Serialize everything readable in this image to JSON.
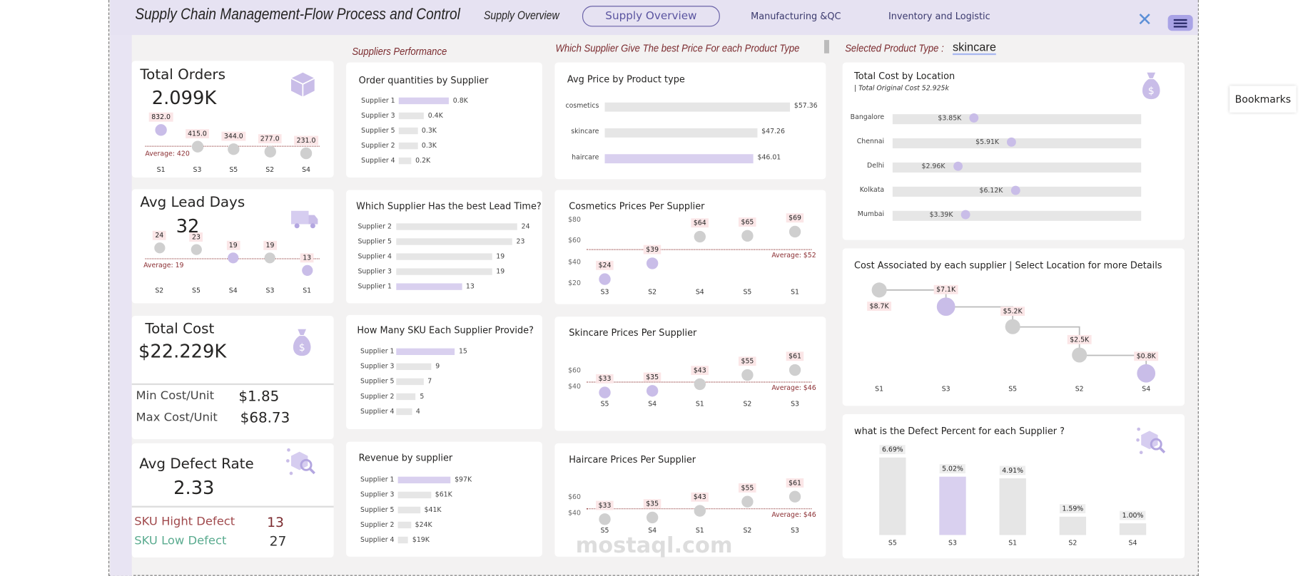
{
  "header": {
    "title": "Supply Chain Management-Flow Process and Control",
    "page_label": "Supply Overview",
    "nav": [
      {
        "label": "Supply Overview",
        "active": true
      },
      {
        "label": "Manufacturing &QC"
      },
      {
        "label": "Inventory and Logistic"
      }
    ],
    "close_icon": "close-x-icon",
    "menu_icon": "hamburger-icon"
  },
  "bookmarks_tooltip": "Bookmarks",
  "sections": {
    "suppliers": "Suppliers Performance",
    "price": "Which Supplier Give The best Price For each Product Type",
    "selected_label": "Selected Product Type :",
    "selected_value": "skincare"
  },
  "colors": {
    "highlight": "#c9bde8",
    "neutral": "#cfcfcf",
    "label_bg": "#fbe6e7",
    "average": "#8b2f33"
  },
  "kpis": {
    "orders": {
      "title": "Total Orders",
      "value": "2.099K",
      "icon": "package-icon",
      "avg_label": "Average: 420",
      "avg": 420,
      "points": [
        {
          "x": "S1",
          "v": 832,
          "t": "832.0",
          "hl": true
        },
        {
          "x": "S3",
          "v": 415,
          "t": "415.0"
        },
        {
          "x": "S5",
          "v": 344,
          "t": "344.0"
        },
        {
          "x": "S2",
          "v": 277,
          "t": "277.0"
        },
        {
          "x": "S4",
          "v": 231,
          "t": "231.0"
        }
      ]
    },
    "lead": {
      "title": "Avg Lead Days",
      "value": "32",
      "icon": "truck-icon",
      "avg_label": "Average: 19",
      "avg": 19,
      "points": [
        {
          "x": "S2",
          "v": 24,
          "t": "24"
        },
        {
          "x": "S5",
          "v": 23,
          "t": "23"
        },
        {
          "x": "S4",
          "v": 19,
          "t": "19",
          "hl": true
        },
        {
          "x": "S3",
          "v": 19,
          "t": "19"
        },
        {
          "x": "S1",
          "v": 13,
          "t": "13",
          "hl": true
        }
      ]
    },
    "cost": {
      "title": "Total Cost",
      "value": "$22.229K",
      "icon": "money-bag-icon",
      "min_label": "Min Cost/Unit",
      "min": "$1.85",
      "max_label": "Max Cost/Unit",
      "max": "$68.73"
    },
    "defect": {
      "title": "Avg Defect Rate",
      "value": "2.33",
      "icon": "defect-search-icon",
      "high_label": "SKU Hight Defect",
      "high": "13",
      "low_label": "SKU Low Defect",
      "low": "27"
    }
  },
  "chart_data": [
    {
      "id": "order_qty",
      "type": "bar",
      "title": "Order quantities by Supplier",
      "categories": [
        "Supplier 1",
        "Supplier 3",
        "Supplier 5",
        "Supplier 2",
        "Supplier 4"
      ],
      "values": [
        0.8,
        0.4,
        0.3,
        0.3,
        0.2
      ],
      "labels": [
        "0.8K",
        "0.4K",
        "0.3K",
        "0.3K",
        "0.2K"
      ],
      "highlight": [
        0
      ]
    },
    {
      "id": "lead_time",
      "type": "bar",
      "title": "Which Supplier Has the best Lead Time?",
      "categories": [
        "Supplier 2",
        "Supplier 5",
        "Supplier 4",
        "Supplier 3",
        "Supplier 1"
      ],
      "values": [
        24,
        23,
        19,
        19,
        13
      ],
      "labels": [
        "24",
        "23",
        "19",
        "19",
        "13"
      ],
      "highlight": [
        4
      ]
    },
    {
      "id": "sku",
      "type": "bar",
      "title": "How Many SKU Each Supplier Provide?",
      "categories": [
        "Supplier 1",
        "Supplier 3",
        "Supplier 5",
        "Supplier 2",
        "Supplier 4"
      ],
      "values": [
        15,
        9,
        7,
        5,
        4
      ],
      "labels": [
        "15",
        "9",
        "7",
        "5",
        "4"
      ],
      "highlight": [
        0
      ]
    },
    {
      "id": "revenue",
      "type": "bar",
      "title": "Revenue by supplier",
      "categories": [
        "Supplier 1",
        "Supplier 3",
        "Supplier 5",
        "Supplier 2",
        "Supplier 4"
      ],
      "values": [
        97,
        61,
        41,
        24,
        19
      ],
      "labels": [
        "$97K",
        "$61K",
        "$41K",
        "$24K",
        "$19K"
      ],
      "highlight": [
        0
      ]
    },
    {
      "id": "avg_price",
      "type": "bar",
      "title": "Avg Price by Product type",
      "categories": [
        "cosmetics",
        "skincare",
        "haircare"
      ],
      "values": [
        57.36,
        47.26,
        46.01
      ],
      "labels": [
        "$57.36",
        "$47.26",
        "$46.01"
      ],
      "highlight": [
        2
      ]
    },
    {
      "id": "cosmetics",
      "type": "scatter",
      "title": "Cosmetics Prices Per Supplier",
      "yticks": [
        "$80",
        "$60",
        "$40",
        "$20"
      ],
      "ylim": [
        20,
        80
      ],
      "avg": 52,
      "avg_label": "Average: $52",
      "points": [
        {
          "x": "S3",
          "v": 24,
          "t": "$24",
          "hl": true
        },
        {
          "x": "S2",
          "v": 39,
          "t": "$39",
          "hl": true
        },
        {
          "x": "S4",
          "v": 64,
          "t": "$64"
        },
        {
          "x": "S5",
          "v": 65,
          "t": "$65"
        },
        {
          "x": "S1",
          "v": 69,
          "t": "$69"
        }
      ]
    },
    {
      "id": "skincare",
      "type": "scatter",
      "title": "Skincare Prices Per Supplier",
      "yticks": [
        "$60",
        "$40"
      ],
      "ylim": [
        30,
        70
      ],
      "avg": 46,
      "avg_label": "Average: $46",
      "points": [
        {
          "x": "S5",
          "v": 33,
          "t": "$33",
          "hl": true
        },
        {
          "x": "S4",
          "v": 35,
          "t": "$35",
          "hl": true
        },
        {
          "x": "S1",
          "v": 43,
          "t": "$43"
        },
        {
          "x": "S2",
          "v": 55,
          "t": "$55"
        },
        {
          "x": "S3",
          "v": 61,
          "t": "$61"
        }
      ]
    },
    {
      "id": "haircare",
      "type": "scatter",
      "title": "Haircare Prices Per Supplier",
      "yticks": [
        "$60",
        "$40"
      ],
      "ylim": [
        30,
        70
      ],
      "avg": 46,
      "avg_label": "Average: $46",
      "points": [
        {
          "x": "S5",
          "v": 33,
          "t": "$33"
        },
        {
          "x": "S4",
          "v": 35,
          "t": "$35"
        },
        {
          "x": "S1",
          "v": 43,
          "t": "$43"
        },
        {
          "x": "S2",
          "v": 55,
          "t": "$55"
        },
        {
          "x": "S3",
          "v": 61,
          "t": "$61"
        }
      ]
    },
    {
      "id": "location",
      "type": "bar",
      "title": "Total Cost by Location",
      "subtitle": "| Total Original Cost 52.925k",
      "categories": [
        "Bangalore",
        "Chennai",
        "Delhi",
        "Kolkata",
        "Mumbai"
      ],
      "values": [
        3.85,
        5.91,
        2.96,
        6.12,
        3.39
      ],
      "labels": [
        "$3.85K",
        "$5.91K",
        "$2.96K",
        "$6.12K",
        "$3.39K"
      ]
    },
    {
      "id": "supplier_cost",
      "type": "line",
      "title": "Cost Associated by each supplier | Select Location for more Details",
      "categories": [
        "S1",
        "S3",
        "S5",
        "S2",
        "S4"
      ],
      "values": [
        8.7,
        7.1,
        5.2,
        2.5,
        0.8
      ],
      "labels": [
        "$8.7K",
        "$7.1K",
        "$5.2K",
        "$2.5K",
        "$0.8K"
      ],
      "highlight": [
        1,
        4
      ]
    },
    {
      "id": "defect",
      "type": "bar",
      "title": "what is the Defect Percent for each Supplier ?",
      "categories": [
        "S5",
        "S3",
        "S1",
        "S2",
        "S4"
      ],
      "values": [
        6.69,
        5.02,
        4.91,
        1.59,
        1.0
      ],
      "labels": [
        "6.69%",
        "5.02%",
        "4.91%",
        "1.59%",
        "1.00%"
      ],
      "highlight": [
        1
      ]
    }
  ],
  "watermark": "mostaql.com"
}
